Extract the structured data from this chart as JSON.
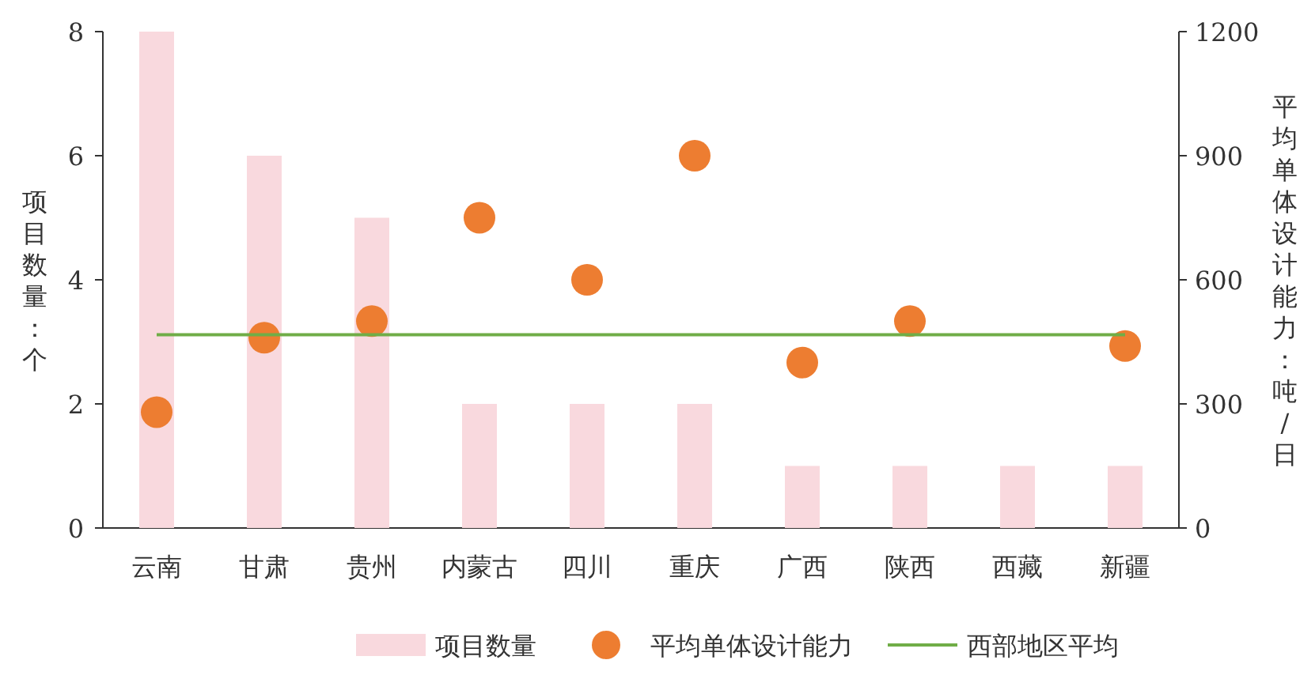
{
  "chart_data": {
    "type": "bar",
    "categories": [
      "云南",
      "甘肃",
      "贵州",
      "内蒙古",
      "四川",
      "重庆",
      "广西",
      "陕西",
      "西藏",
      "新疆"
    ],
    "ylabel": "项目数量：个",
    "y2label": "平均单体设计能力：吨/日",
    "ylim": [
      0,
      8
    ],
    "yticks": [
      0,
      2,
      4,
      6,
      8
    ],
    "y2lim": [
      0,
      1200
    ],
    "y2ticks": [
      0,
      300,
      600,
      900,
      1200
    ],
    "legend": "bottom",
    "grid": false,
    "series": [
      {
        "name": "项目数量",
        "color": "#f9d9de",
        "values": [
          8,
          6,
          5,
          2,
          2,
          2,
          1,
          1,
          1,
          1
        ]
      },
      {
        "name": "平均单体设计能力",
        "type": "scatter",
        "axis": "y2",
        "marker": "circle",
        "color": "#ed7d31",
        "values": [
          280,
          460,
          500,
          750,
          600,
          900,
          400,
          500,
          null,
          440
        ]
      },
      {
        "name": "西部地区平均",
        "type": "line",
        "axis": "y2",
        "color": "#70ad47",
        "values": [
          467,
          467,
          467,
          467,
          467,
          467,
          467,
          467,
          467,
          467
        ]
      }
    ]
  }
}
